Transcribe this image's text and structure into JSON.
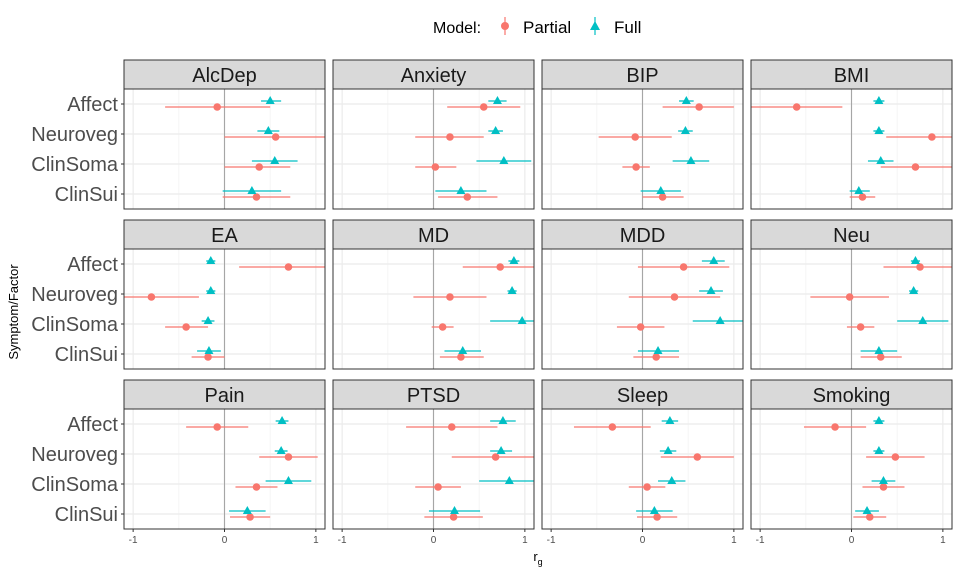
{
  "chart_data": {
    "type": "forest-facet",
    "legend": {
      "title": "Model:",
      "placement": "top",
      "entries": [
        {
          "name": "Partial",
          "color": "#F8766D",
          "shape": "circle"
        },
        {
          "name": "Full",
          "color": "#00BFC4",
          "shape": "triangle"
        }
      ]
    },
    "xlabel": "r",
    "xlabel_sub": "g",
    "ylabel": "Symptom/Factor",
    "xlim": [
      -1.1,
      1.1
    ],
    "xticks": [
      -1,
      0,
      1
    ],
    "xtick_labels": [
      "-1",
      "0",
      "1"
    ],
    "categories": [
      "Affect",
      "Neuroveg",
      "ClinSoma",
      "ClinSui"
    ],
    "grid": true,
    "facets": [
      {
        "name": "AlcDep",
        "partial": [
          [
            -0.08,
            -0.65,
            0.5
          ],
          [
            0.56,
            0,
            1.1
          ],
          [
            0.38,
            0,
            0.72
          ],
          [
            0.35,
            -0.02,
            0.72
          ]
        ],
        "full": [
          [
            0.5,
            0.4,
            0.62
          ],
          [
            0.48,
            0.36,
            0.6
          ],
          [
            0.55,
            0.3,
            0.8
          ],
          [
            0.3,
            -0.02,
            0.62
          ]
        ]
      },
      {
        "name": "Anxiety",
        "partial": [
          [
            0.55,
            0.15,
            0.95
          ],
          [
            0.18,
            -0.2,
            0.55
          ],
          [
            0.02,
            -0.2,
            0.25
          ],
          [
            0.37,
            0.05,
            0.7
          ]
        ],
        "full": [
          [
            0.7,
            0.6,
            0.8
          ],
          [
            0.68,
            0.6,
            0.76
          ],
          [
            0.77,
            0.47,
            1.07
          ],
          [
            0.3,
            0.02,
            0.58
          ]
        ]
      },
      {
        "name": "BIP",
        "partial": [
          [
            0.62,
            0.22,
            1.0
          ],
          [
            -0.08,
            -0.48,
            0.32
          ],
          [
            -0.07,
            -0.22,
            0.08
          ],
          [
            0.22,
            0,
            0.45
          ]
        ],
        "full": [
          [
            0.48,
            0.4,
            0.56
          ],
          [
            0.47,
            0.39,
            0.55
          ],
          [
            0.53,
            0.33,
            0.73
          ],
          [
            0.2,
            -0.02,
            0.42
          ]
        ]
      },
      {
        "name": "BMI",
        "partial": [
          [
            -0.6,
            -1.1,
            -0.1
          ],
          [
            0.88,
            0.38,
            1.1
          ],
          [
            0.7,
            0.32,
            1.1
          ],
          [
            0.12,
            -0.02,
            0.26
          ]
        ],
        "full": [
          [
            0.3,
            0.24,
            0.36
          ],
          [
            0.3,
            0.24,
            0.36
          ],
          [
            0.32,
            0.18,
            0.46
          ],
          [
            0.08,
            -0.02,
            0.2
          ]
        ]
      },
      {
        "name": "EA",
        "partial": [
          [
            0.7,
            0.16,
            1.1
          ],
          [
            -0.8,
            -1.1,
            -0.28
          ],
          [
            -0.42,
            -0.65,
            -0.18
          ],
          [
            -0.18,
            -0.36,
            0
          ]
        ],
        "full": [
          [
            -0.15,
            -0.2,
            -0.1
          ],
          [
            -0.15,
            -0.2,
            -0.1
          ],
          [
            -0.18,
            -0.25,
            -0.11
          ],
          [
            -0.17,
            -0.3,
            -0.04
          ]
        ]
      },
      {
        "name": "MD",
        "partial": [
          [
            0.73,
            0.32,
            1.1
          ],
          [
            0.18,
            -0.22,
            0.58
          ],
          [
            0.1,
            -0.02,
            0.22
          ],
          [
            0.3,
            0.07,
            0.55
          ]
        ],
        "full": [
          [
            0.88,
            0.82,
            0.94
          ],
          [
            0.86,
            0.81,
            0.91
          ],
          [
            0.97,
            0.62,
            1.1
          ],
          [
            0.32,
            0.12,
            0.52
          ]
        ]
      },
      {
        "name": "MDD",
        "partial": [
          [
            0.45,
            -0.05,
            0.95
          ],
          [
            0.35,
            -0.15,
            0.85
          ],
          [
            -0.02,
            -0.28,
            0.24
          ],
          [
            0.15,
            -0.1,
            0.4
          ]
        ],
        "full": [
          [
            0.78,
            0.65,
            0.9
          ],
          [
            0.75,
            0.62,
            0.88
          ],
          [
            0.85,
            0.55,
            1.1
          ],
          [
            0.17,
            -0.05,
            0.4
          ]
        ]
      },
      {
        "name": "Neu",
        "partial": [
          [
            0.75,
            0.35,
            1.1
          ],
          [
            -0.02,
            -0.45,
            0.41
          ],
          [
            0.1,
            -0.05,
            0.25
          ],
          [
            0.32,
            0.1,
            0.55
          ]
        ],
        "full": [
          [
            0.7,
            0.65,
            0.75
          ],
          [
            0.68,
            0.63,
            0.73
          ],
          [
            0.78,
            0.5,
            1.06
          ],
          [
            0.3,
            0.1,
            0.5
          ]
        ]
      },
      {
        "name": "Pain",
        "partial": [
          [
            -0.08,
            -0.42,
            0.26
          ],
          [
            0.7,
            0.38,
            1.02
          ],
          [
            0.35,
            0.12,
            0.58
          ],
          [
            0.28,
            0.06,
            0.5
          ]
        ],
        "full": [
          [
            0.63,
            0.56,
            0.7
          ],
          [
            0.62,
            0.55,
            0.69
          ],
          [
            0.7,
            0.45,
            0.95
          ],
          [
            0.25,
            0.05,
            0.45
          ]
        ]
      },
      {
        "name": "PTSD",
        "partial": [
          [
            0.2,
            -0.3,
            0.7
          ],
          [
            0.68,
            0.2,
            1.1
          ],
          [
            0.05,
            -0.2,
            0.3
          ],
          [
            0.22,
            -0.1,
            0.54
          ]
        ],
        "full": [
          [
            0.76,
            0.62,
            0.9
          ],
          [
            0.74,
            0.62,
            0.86
          ],
          [
            0.83,
            0.5,
            1.1
          ],
          [
            0.23,
            -0.05,
            0.51
          ]
        ]
      },
      {
        "name": "Sleep",
        "partial": [
          [
            -0.33,
            -0.75,
            0.09
          ],
          [
            0.6,
            0.2,
            1.0
          ],
          [
            0.05,
            -0.15,
            0.25
          ],
          [
            0.16,
            -0.06,
            0.38
          ]
        ],
        "full": [
          [
            0.3,
            0.21,
            0.39
          ],
          [
            0.28,
            0.19,
            0.37
          ],
          [
            0.32,
            0.17,
            0.47
          ],
          [
            0.13,
            -0.07,
            0.33
          ]
        ]
      },
      {
        "name": "Smoking",
        "partial": [
          [
            -0.18,
            -0.52,
            0.16
          ],
          [
            0.48,
            0.16,
            0.8
          ],
          [
            0.35,
            0.12,
            0.58
          ],
          [
            0.2,
            0.02,
            0.38
          ]
        ],
        "full": [
          [
            0.3,
            0.24,
            0.36
          ],
          [
            0.3,
            0.24,
            0.36
          ],
          [
            0.35,
            0.22,
            0.48
          ],
          [
            0.17,
            0.04,
            0.3
          ]
        ]
      }
    ]
  }
}
